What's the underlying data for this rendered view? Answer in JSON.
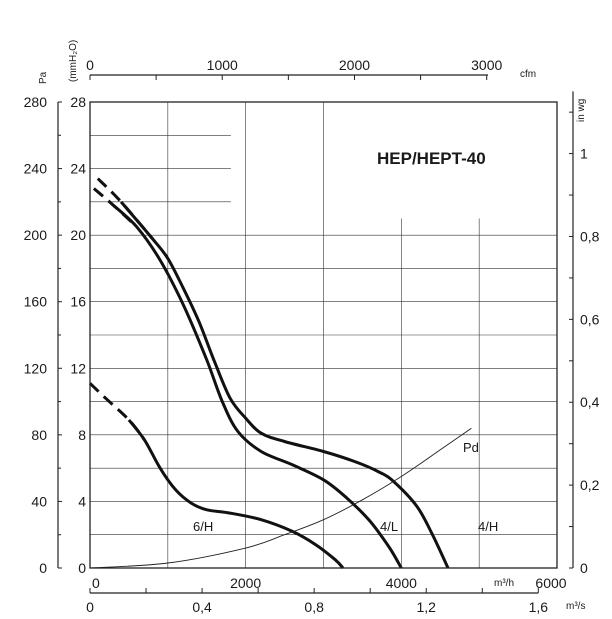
{
  "chart_data": {
    "type": "line",
    "title": "HEP/HEPT-40",
    "xlabel": "m³/h",
    "ylabel": "Pa",
    "xlim": [
      0,
      6000
    ],
    "ylim": [
      0,
      280
    ],
    "x_ticks": [
      "0",
      "2000",
      "4000",
      "6000"
    ],
    "y_ticks": [
      "0",
      "40",
      "80",
      "120",
      "160",
      "200",
      "240",
      "280"
    ],
    "secondary_axes": {
      "top": {
        "label": "cfm",
        "ticks": [
          "0",
          "1000",
          "2000",
          "3000"
        ],
        "values": [
          0,
          1000,
          2000,
          3000
        ],
        "m3h_per_unit": 1.699
      },
      "bottom": {
        "label": "m³/s",
        "ticks": [
          "0",
          "0,4",
          "0,8",
          "1,2",
          "1,6"
        ],
        "values": [
          0,
          0.4,
          0.8,
          1.2,
          1.6
        ],
        "m3h_per_unit": 3600
      },
      "left_inner": {
        "label": "(mmH₂O)",
        "ticks": [
          "0",
          "4",
          "8",
          "12",
          "16",
          "20",
          "24",
          "28"
        ],
        "values": [
          0,
          4,
          8,
          12,
          16,
          20,
          24,
          28
        ],
        "pa_per_unit": 10
      },
      "right": {
        "label": "in wg",
        "ticks": [
          "0",
          "0,2",
          "0,4",
          "0,6",
          "0,8",
          "1"
        ],
        "values": [
          0,
          0.2,
          0.4,
          0.6,
          0.8,
          1
        ],
        "pa_per_unit": 249
      }
    },
    "grid": true,
    "series": [
      {
        "name": "4/H",
        "dashed_until_x": 500,
        "points": [
          [
            100,
            234
          ],
          [
            400,
            220
          ],
          [
            800,
            198
          ],
          [
            1000,
            186
          ],
          [
            1200,
            168
          ],
          [
            1400,
            148
          ],
          [
            1600,
            124
          ],
          [
            1800,
            102
          ],
          [
            2000,
            90
          ],
          [
            2200,
            81
          ],
          [
            2500,
            76
          ],
          [
            3000,
            70
          ],
          [
            3400,
            64
          ],
          [
            3700,
            58
          ],
          [
            3900,
            52
          ],
          [
            4200,
            37
          ],
          [
            4400,
            20
          ],
          [
            4600,
            0
          ]
        ]
      },
      {
        "name": "4/L",
        "dashed_until_x": 500,
        "points": [
          [
            50,
            228
          ],
          [
            300,
            218
          ],
          [
            600,
            205
          ],
          [
            900,
            185
          ],
          [
            1200,
            158
          ],
          [
            1500,
            125
          ],
          [
            1700,
            100
          ],
          [
            1900,
            82
          ],
          [
            2200,
            70
          ],
          [
            2600,
            62
          ],
          [
            3000,
            53
          ],
          [
            3300,
            42
          ],
          [
            3600,
            28
          ],
          [
            3850,
            12
          ],
          [
            4000,
            0
          ]
        ]
      },
      {
        "name": "6/H",
        "dashed_until_x": 550,
        "points": [
          [
            0,
            111
          ],
          [
            200,
            102
          ],
          [
            500,
            89
          ],
          [
            700,
            77
          ],
          [
            900,
            60
          ],
          [
            1100,
            47
          ],
          [
            1300,
            39
          ],
          [
            1500,
            35
          ],
          [
            1800,
            33
          ],
          [
            2200,
            29
          ],
          [
            2600,
            22
          ],
          [
            2900,
            14
          ],
          [
            3150,
            5
          ],
          [
            3250,
            0
          ]
        ]
      },
      {
        "name": "Pd",
        "points": [
          [
            0,
            0
          ],
          [
            1000,
            3
          ],
          [
            2000,
            12
          ],
          [
            2500,
            20
          ],
          [
            3000,
            29
          ],
          [
            3500,
            41
          ],
          [
            4000,
            55
          ],
          [
            4500,
            71
          ],
          [
            4900,
            84
          ]
        ]
      }
    ]
  }
}
